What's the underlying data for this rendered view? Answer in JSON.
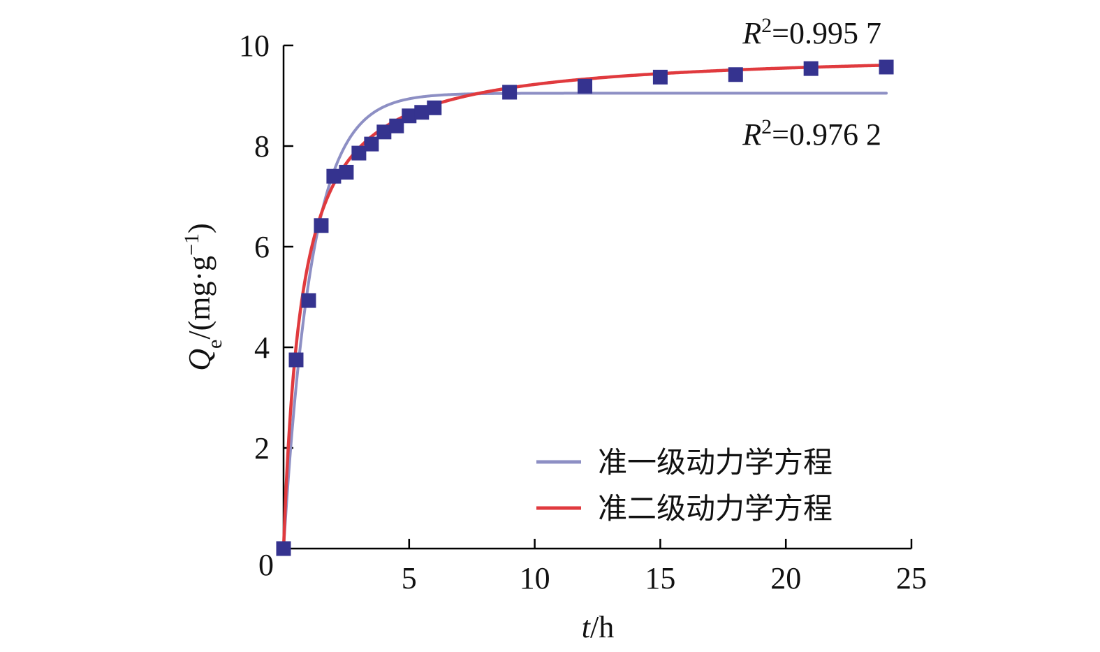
{
  "chart_data": {
    "type": "scatter",
    "xlabel": {
      "var": "t",
      "unit": "/h"
    },
    "ylabel": {
      "var": "Q",
      "sub": "e",
      "unit_open": "/(mg·g",
      "unit_sup": "−1",
      "unit_close": ")"
    },
    "xlim": [
      0,
      25
    ],
    "ylim": [
      0,
      10
    ],
    "x_ticks": [
      5,
      10,
      15,
      20,
      25
    ],
    "y_ticks": [
      2,
      4,
      6,
      8,
      10
    ],
    "origin_label": "0",
    "grid": false,
    "legend_position": "bottom-right",
    "colors": {
      "points": "#35338f",
      "pfo": "#8d8fc4",
      "pso": "#e03a3e"
    },
    "points": {
      "x": [
        0,
        0.5,
        1,
        1.5,
        2,
        2.5,
        3,
        3.5,
        4,
        4.5,
        5,
        5.5,
        6,
        9,
        12,
        15,
        18,
        21,
        24
      ],
      "y": [
        0,
        3.75,
        4.93,
        6.42,
        7.4,
        7.48,
        7.86,
        8.04,
        8.28,
        8.4,
        8.6,
        8.67,
        8.76,
        9.07,
        9.19,
        9.37,
        9.42,
        9.54,
        9.57
      ]
    },
    "series": [
      {
        "name": "准一级动力学方程",
        "key": "pfo",
        "model": "pfo",
        "qe": 9.05,
        "k": 0.88,
        "annotation": {
          "R": "R",
          "sup": "2",
          "value": "=0.976 2"
        }
      },
      {
        "name": "准二级动力学方程",
        "key": "pso",
        "model": "pso",
        "qe": 9.9,
        "k": 0.138,
        "annotation": {
          "R": "R",
          "sup": "2",
          "value": "=0.995 7"
        }
      }
    ]
  }
}
